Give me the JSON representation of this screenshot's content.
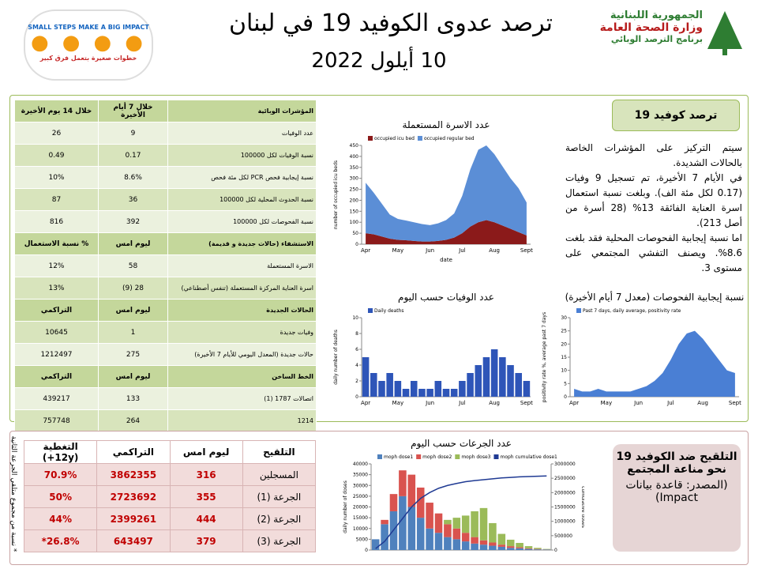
{
  "header": {
    "title": "ترصد عدوى الكوفيد 19 في لبنان",
    "date": "10 أيلول 2022",
    "ministry": [
      "الجمهورية اللبنانية",
      "وزارة الصحة العامة",
      "برنامج الترصد الوبائي"
    ],
    "campaign": [
      "SMALL STEPS MAKE A BIG IMPACT",
      "خطوات صغيرة بتعمل فرق كبير"
    ]
  },
  "indicators": {
    "rows": [
      {
        "header": true,
        "cells": [
          "المؤشرات الوبائية",
          "خلال 7 أيام الأخيرة",
          "خلال 14 يوم الأخيرة"
        ]
      },
      {
        "cells": [
          "عدد الوفيات",
          "9",
          "26"
        ]
      },
      {
        "cells": [
          "نسبة الوفيات لكل 100000",
          "0.17",
          "0.49"
        ]
      },
      {
        "cells": [
          "نسبة إيجابية فحص PCR لكل مئة فحص",
          "8.6%",
          "10%"
        ]
      },
      {
        "cells": [
          "نسبة الحدوث المحلية لكل 100000",
          "36",
          "87"
        ]
      },
      {
        "cells": [
          "نسبة الفحوصات لكل 100000",
          "392",
          "816"
        ]
      },
      {
        "header": true,
        "cells": [
          "الاستشفاء (حالات جديدة و قديمة)",
          "ليوم امس",
          "% نسبة الاستعمال"
        ]
      },
      {
        "cells": [
          "الاسرة المستعملة",
          "58",
          "12%"
        ]
      },
      {
        "cells": [
          "اسرة العناية المركزة المستعملة (تنفس أصطناعي)",
          "28 (9)",
          "13%"
        ]
      },
      {
        "header": true,
        "cells": [
          "الحالات الجديدة",
          "ليوم امس",
          "التراكمي"
        ]
      },
      {
        "cells": [
          "وفيات جديدة",
          "1",
          "10645"
        ]
      },
      {
        "cells": [
          "حالات جديدة (المعدل اليومي للأيام 7 الأخيرة)",
          "275",
          "1212497"
        ]
      },
      {
        "header": true,
        "cells": [
          "الخط الساخن",
          "ليوم امس",
          "التراكمي"
        ]
      },
      {
        "cells": [
          "اتصالات 1787 (1)",
          "133",
          "439217"
        ]
      },
      {
        "cells": [
          "1214",
          "264",
          "757748"
        ]
      }
    ]
  },
  "summary": {
    "title": "ترصد كوفيد 19",
    "paragraphs": [
      "سيتم التركيز على المؤشرات الخاصة بالحالات الشديدة.",
      "في الأيام 7 الأخيرة، تم تسجيل 9 وفيات (0.17 لكل مئة الف). وبلغت نسبة استعمال اسرة العناية الفائقة 13% (28 أسرة من أصل 213).",
      "اما نسبة إيجابية الفحوصات المحلية فقد بلغت 8.6%. ويصنف التفشي المجتمعي على مستوى 3."
    ]
  },
  "vaccination": {
    "rows": [
      {
        "header": true,
        "cells": [
          "التلقيح",
          "ليوم امس",
          "التراكمي",
          "التغطية (12y+)"
        ]
      },
      {
        "cells": [
          "المسجلين",
          "316",
          "3862355",
          "70.9%"
        ]
      },
      {
        "cells": [
          "الجرعة (1)",
          "355",
          "2723692",
          "50%"
        ]
      },
      {
        "cells": [
          "الجرعة (2)",
          "444",
          "2399261",
          "44%"
        ]
      },
      {
        "cells": [
          "الجرعة (3)",
          "379",
          "643497",
          "26.8%*"
        ]
      }
    ],
    "note": "* نسبة من مجموع متلقي الجرعة الثانية",
    "box": {
      "title": "التلقيح ضد الكوفيد 19 نحو مناعة المجتمع",
      "source": "(المصدر: قاعدة بيانات Impact)"
    }
  },
  "chart_data": [
    {
      "type": "area",
      "stacked": true,
      "title": "عدد الاسرة المستعملة",
      "ylabel": "number of occupied icu beds",
      "xlabel": "date",
      "categories": [
        "Apr",
        null,
        null,
        null,
        "May",
        null,
        null,
        null,
        "Jun",
        null,
        null,
        null,
        "Jul",
        null,
        null,
        null,
        "Aug",
        null,
        null,
        null,
        "Sept"
      ],
      "series": [
        {
          "name": "occupied icu bed",
          "color": "#8b1a1a",
          "values": [
            50,
            45,
            35,
            25,
            20,
            18,
            15,
            12,
            12,
            15,
            20,
            30,
            50,
            80,
            100,
            110,
            100,
            85,
            70,
            55,
            40
          ]
        },
        {
          "name": "occupied regular bed",
          "color": "#5b8ed6",
          "values": [
            230,
            190,
            150,
            110,
            95,
            90,
            85,
            80,
            75,
            80,
            90,
            110,
            170,
            260,
            330,
            340,
            310,
            270,
            230,
            200,
            150
          ]
        }
      ],
      "ylim": [
        0,
        450
      ],
      "yticks": [
        0,
        50,
        100,
        150,
        200,
        250,
        300,
        350,
        400,
        450
      ]
    },
    {
      "type": "bar",
      "title": "عدد الوفيات حسب اليوم",
      "ylabel": "daily number of deaths",
      "categories": [
        "Apr",
        null,
        null,
        null,
        "May",
        null,
        null,
        null,
        "Jun",
        null,
        null,
        null,
        "Jul",
        null,
        null,
        null,
        "Aug",
        null,
        null,
        null,
        "Sept"
      ],
      "series": [
        {
          "name": "Daily deaths",
          "color": "#2e55b8",
          "values": [
            5,
            3,
            2,
            3,
            2,
            1,
            2,
            1,
            1,
            2,
            1,
            1,
            2,
            3,
            4,
            5,
            6,
            5,
            4,
            3,
            2
          ]
        }
      ],
      "ylim": [
        0,
        10
      ],
      "yticks": [
        0,
        2,
        4,
        6,
        8,
        10
      ]
    },
    {
      "type": "area",
      "stacked": false,
      "title": "نسبة إيجابية الفحوصات (معدل 7 أيام الأخيرة)",
      "ylabel": "positivity rate %, average past 7 days",
      "categories": [
        "Apr",
        null,
        null,
        null,
        "May",
        null,
        null,
        null,
        "Jun",
        null,
        null,
        null,
        "Jul",
        null,
        null,
        null,
        "Aug",
        null,
        null,
        null,
        "Sept"
      ],
      "series": [
        {
          "name": "Past 7 days, daily average, positivity rate",
          "color": "#4a7fd4",
          "values": [
            3,
            2,
            2,
            3,
            2,
            2,
            2,
            2,
            3,
            4,
            6,
            9,
            14,
            20,
            24,
            25,
            22,
            18,
            14,
            10,
            9
          ]
        }
      ],
      "ylim": [
        0,
        30
      ],
      "yticks": [
        0,
        5,
        10,
        15,
        20,
        25,
        30
      ]
    },
    {
      "type": "bar",
      "stacked": true,
      "title": "عدد الجرعات حسب اليوم",
      "ylabel": "daily number of doses",
      "y2label": "cumulative doses",
      "series": [
        {
          "name": "moph dose1",
          "color": "#4f81bd",
          "values": [
            5000,
            12000,
            18000,
            25000,
            20000,
            15000,
            10000,
            8000,
            6000,
            5000,
            4000,
            3000,
            2500,
            2000,
            1500,
            1000,
            800,
            500,
            300,
            200
          ]
        },
        {
          "name": "moph dose2",
          "color": "#d9534f",
          "values": [
            0,
            2000,
            8000,
            12000,
            15000,
            14000,
            12000,
            9000,
            6000,
            5000,
            4000,
            3000,
            2000,
            1500,
            1000,
            800,
            500,
            300,
            200,
            100
          ]
        },
        {
          "name": "moph dose3",
          "color": "#9bbb59",
          "values": [
            0,
            0,
            0,
            0,
            0,
            0,
            0,
            0,
            2000,
            5000,
            8000,
            12000,
            15000,
            9000,
            5000,
            3000,
            2000,
            1000,
            500,
            200
          ]
        },
        {
          "name": "moph cumulative dose1",
          "color": "#1f3a93",
          "axis": "y2",
          "values": [
            50000,
            300000,
            700000,
            1100000,
            1500000,
            1800000,
            2000000,
            2150000,
            2250000,
            2320000,
            2380000,
            2420000,
            2450000,
            2480000,
            2510000,
            2530000,
            2550000,
            2560000,
            2570000,
            2580000
          ]
        }
      ],
      "ylim": [
        0,
        40000
      ],
      "yticks": [
        0,
        5000,
        10000,
        15000,
        20000,
        25000,
        30000,
        35000,
        40000
      ],
      "y2lim": [
        0,
        3000000
      ],
      "y2ticks": [
        0,
        500000,
        1000000,
        1500000,
        2000000,
        2500000,
        3000000
      ]
    }
  ]
}
